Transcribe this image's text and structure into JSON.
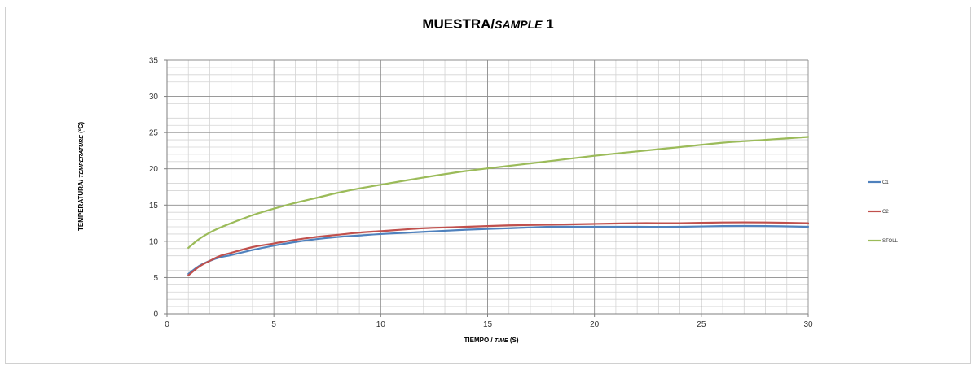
{
  "chart_data": {
    "type": "line",
    "title": "MUESTRA/",
    "title_italic": "SAMPLE",
    "title_suffix": " 1",
    "xlabel": "TIEMPO  / ",
    "xlabel_italic": "TIME",
    "xlabel_suffix": " (S)",
    "ylabel": "TEMPERATURA/  ",
    "ylabel_italic": "TEMPERATURE",
    "ylabel_suffix": " (ºC)",
    "xlim": [
      0,
      30
    ],
    "ylim": [
      0,
      35
    ],
    "xticks": [
      0,
      5,
      10,
      15,
      20,
      25,
      30
    ],
    "yticks": [
      0,
      5,
      10,
      15,
      20,
      25,
      30,
      35
    ],
    "xtick_labels": [
      "0",
      "5",
      "10",
      "15",
      "20",
      "25",
      "30"
    ],
    "ytick_labels": [
      "0",
      "5",
      "10",
      "15",
      "20",
      "25",
      "30",
      "35"
    ],
    "grid": true,
    "legend_position": "right",
    "series": [
      {
        "name": "C1",
        "color": "#4F81BD",
        "x": [
          1,
          1.5,
          2,
          2.5,
          3,
          4,
          5,
          6,
          7,
          8,
          9,
          10,
          12,
          14,
          16,
          18,
          20,
          22,
          24,
          26,
          28,
          30
        ],
        "y": [
          5.5,
          6.6,
          7.3,
          7.8,
          8.1,
          8.8,
          9.4,
          9.9,
          10.3,
          10.6,
          10.8,
          11.0,
          11.3,
          11.6,
          11.8,
          12.0,
          12.0,
          12.0,
          12.0,
          12.1,
          12.1,
          12.0
        ]
      },
      {
        "name": "C2",
        "color": "#C0504D",
        "x": [
          1,
          1.5,
          2,
          2.5,
          3,
          4,
          5,
          6,
          7,
          8,
          9,
          10,
          12,
          14,
          16,
          18,
          20,
          22,
          24,
          26,
          28,
          30
        ],
        "y": [
          5.3,
          6.5,
          7.3,
          8.0,
          8.4,
          9.2,
          9.7,
          10.2,
          10.6,
          10.9,
          11.2,
          11.4,
          11.8,
          12.0,
          12.2,
          12.3,
          12.4,
          12.5,
          12.5,
          12.6,
          12.6,
          12.5
        ]
      },
      {
        "name": "STOLL",
        "color": "#9BBB59",
        "x": [
          1,
          1.5,
          2,
          2.5,
          3,
          4,
          5,
          6,
          7,
          8,
          9,
          10,
          12,
          14,
          16,
          18,
          20,
          22,
          24,
          26,
          28,
          30
        ],
        "y": [
          9.1,
          10.3,
          11.2,
          11.9,
          12.5,
          13.6,
          14.5,
          15.3,
          16.0,
          16.7,
          17.3,
          17.8,
          18.8,
          19.7,
          20.4,
          21.1,
          21.8,
          22.4,
          23.0,
          23.6,
          24.0,
          24.4
        ]
      }
    ]
  }
}
